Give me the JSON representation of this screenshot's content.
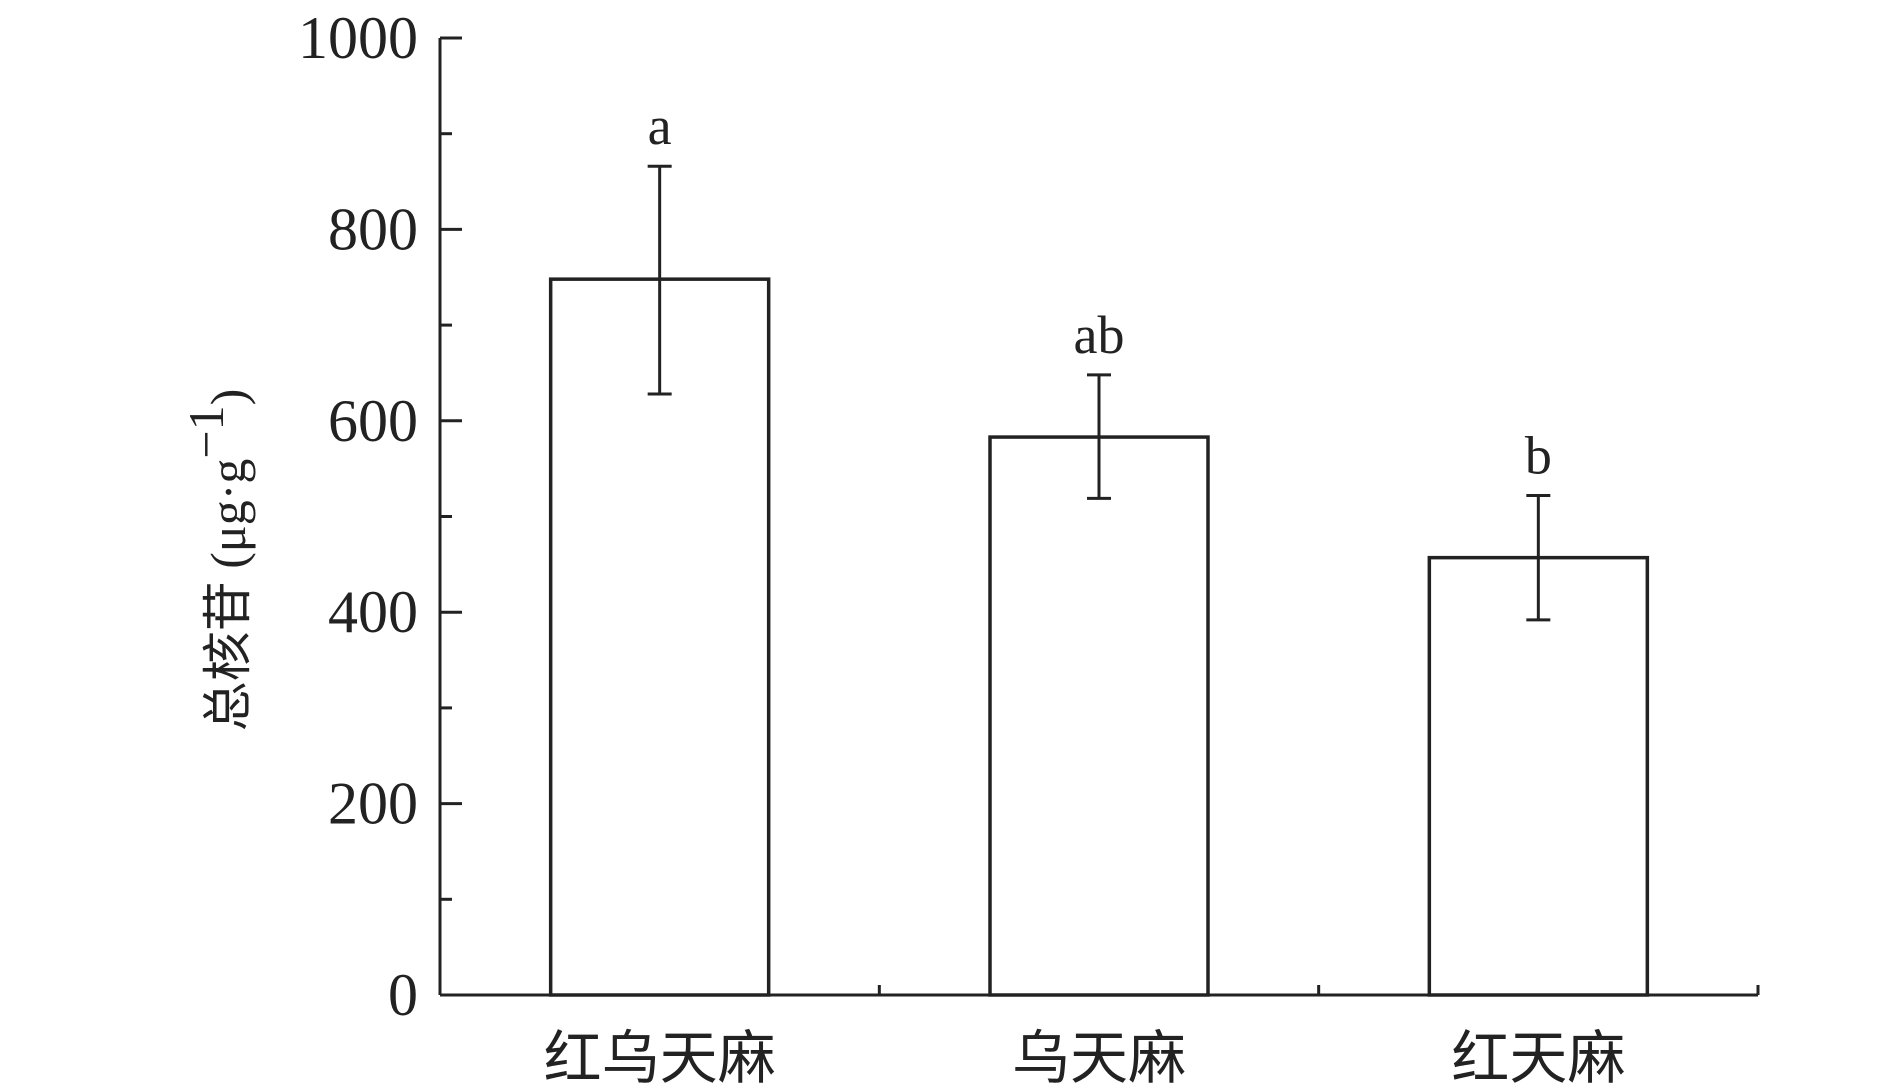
{
  "chart_data": {
    "type": "bar",
    "categories": [
      "红乌天麻",
      "乌天麻",
      "红天麻"
    ],
    "values": [
      748,
      583,
      457
    ],
    "errors": [
      [
        628,
        866
      ],
      [
        519,
        648
      ],
      [
        392,
        522
      ]
    ],
    "significance": [
      "a",
      "ab",
      "b"
    ],
    "ylabel": {
      "main": "总核苷",
      "unit_open": " (μg·g",
      "unit_sup": "−1",
      "unit_close": ")"
    },
    "xlabel": "",
    "ylim": [
      0,
      1000
    ],
    "yticks": [
      "0",
      "200",
      "400",
      "600",
      "800",
      "1000"
    ],
    "bar_fill": "#ffffff",
    "stroke_color": "#222222",
    "grid": false,
    "legend": "none"
  }
}
